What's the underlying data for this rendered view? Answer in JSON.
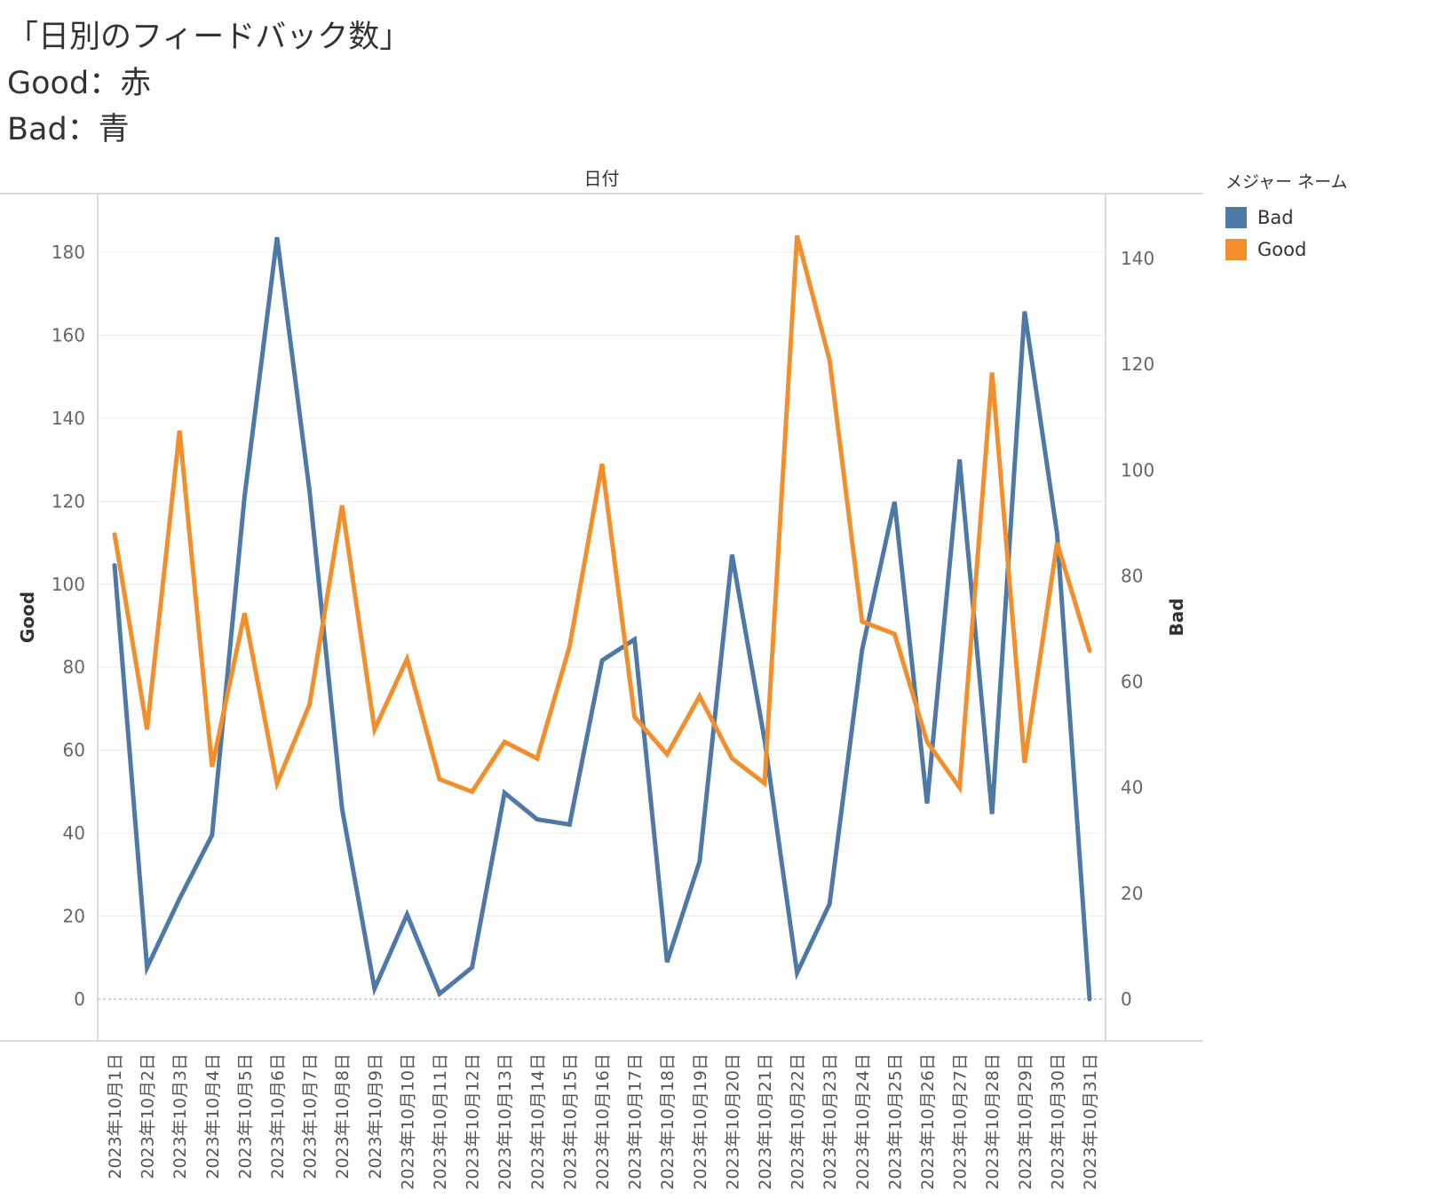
{
  "title": {
    "line1": "「日別のフィードバック数」",
    "line2": "Good：赤",
    "line3": "Bad：青"
  },
  "legend": {
    "title": "メジャー ネーム",
    "items": [
      {
        "label": "Bad",
        "color": "#4e79a7"
      },
      {
        "label": "Good",
        "color": "#f28e2b"
      }
    ]
  },
  "chart_data": {
    "type": "line",
    "header": "日付",
    "categories": [
      "2023年10月1日",
      "2023年10月2日",
      "2023年10月3日",
      "2023年10月4日",
      "2023年10月5日",
      "2023年10月6日",
      "2023年10月7日",
      "2023年10月8日",
      "2023年10月9日",
      "2023年10月10日",
      "2023年10月11日",
      "2023年10月12日",
      "2023年10月13日",
      "2023年10月14日",
      "2023年10月15日",
      "2023年10月16日",
      "2023年10月17日",
      "2023年10月18日",
      "2023年10月19日",
      "2023年10月20日",
      "2023年10月21日",
      "2023年10月22日",
      "2023年10月23日",
      "2023年10月24日",
      "2023年10月25日",
      "2023年10月26日",
      "2023年10月27日",
      "2023年10月28日",
      "2023年10月29日",
      "2023年10月30日",
      "2023年10月31日"
    ],
    "y_left": {
      "label": "Good",
      "range": [
        0,
        190
      ],
      "ticks": [
        0,
        20,
        40,
        60,
        80,
        100,
        120,
        140,
        160,
        180
      ]
    },
    "y_right": {
      "label": "Bad",
      "range": [
        0,
        150
      ],
      "ticks": [
        0,
        20,
        40,
        60,
        80,
        100,
        120,
        140
      ]
    },
    "series": [
      {
        "name": "Bad",
        "axis": "right",
        "color": "#4e79a7",
        "values": [
          82,
          6,
          19,
          31,
          95,
          144,
          96,
          36,
          2,
          16,
          1,
          6,
          39,
          34,
          33,
          64,
          68,
          7,
          26,
          84,
          49,
          5,
          18,
          66,
          94,
          37,
          102,
          35,
          130,
          88,
          0
        ]
      },
      {
        "name": "Good",
        "axis": "left",
        "color": "#f28e2b",
        "values": [
          112,
          65,
          137,
          56,
          93,
          52,
          71,
          119,
          65,
          82,
          53,
          50,
          62,
          58,
          85,
          129,
          68,
          59,
          73,
          58,
          52,
          184,
          154,
          91,
          88,
          62,
          51,
          151,
          57,
          110,
          84
        ]
      }
    ],
    "grid": true
  }
}
